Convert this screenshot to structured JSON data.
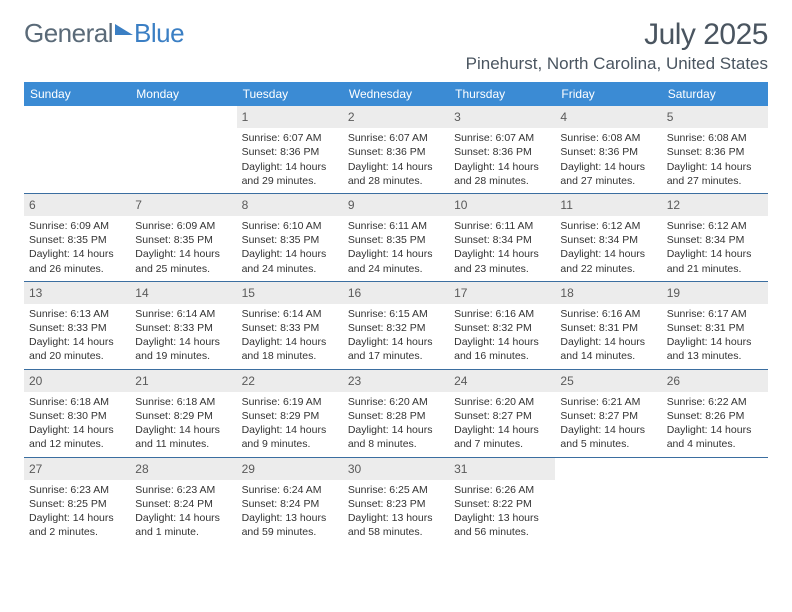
{
  "logo": {
    "text1": "General",
    "text2": "Blue"
  },
  "title": "July 2025",
  "location": "Pinehurst, North Carolina, United States",
  "colors": {
    "header_bg": "#3b8bd4",
    "header_text": "#ffffff",
    "daynum_bg": "#ececec",
    "week_border": "#3b6ea0",
    "title_color": "#4a5560",
    "logo_gray": "#5a6a78",
    "logo_blue": "#3b7fc4"
  },
  "day_names": [
    "Sunday",
    "Monday",
    "Tuesday",
    "Wednesday",
    "Thursday",
    "Friday",
    "Saturday"
  ],
  "first_weekday": 2,
  "days_in_month": 31,
  "days": {
    "1": {
      "sunrise": "6:07 AM",
      "sunset": "8:36 PM",
      "daylight": "14 hours and 29 minutes."
    },
    "2": {
      "sunrise": "6:07 AM",
      "sunset": "8:36 PM",
      "daylight": "14 hours and 28 minutes."
    },
    "3": {
      "sunrise": "6:07 AM",
      "sunset": "8:36 PM",
      "daylight": "14 hours and 28 minutes."
    },
    "4": {
      "sunrise": "6:08 AM",
      "sunset": "8:36 PM",
      "daylight": "14 hours and 27 minutes."
    },
    "5": {
      "sunrise": "6:08 AM",
      "sunset": "8:36 PM",
      "daylight": "14 hours and 27 minutes."
    },
    "6": {
      "sunrise": "6:09 AM",
      "sunset": "8:35 PM",
      "daylight": "14 hours and 26 minutes."
    },
    "7": {
      "sunrise": "6:09 AM",
      "sunset": "8:35 PM",
      "daylight": "14 hours and 25 minutes."
    },
    "8": {
      "sunrise": "6:10 AM",
      "sunset": "8:35 PM",
      "daylight": "14 hours and 24 minutes."
    },
    "9": {
      "sunrise": "6:11 AM",
      "sunset": "8:35 PM",
      "daylight": "14 hours and 24 minutes."
    },
    "10": {
      "sunrise": "6:11 AM",
      "sunset": "8:34 PM",
      "daylight": "14 hours and 23 minutes."
    },
    "11": {
      "sunrise": "6:12 AM",
      "sunset": "8:34 PM",
      "daylight": "14 hours and 22 minutes."
    },
    "12": {
      "sunrise": "6:12 AM",
      "sunset": "8:34 PM",
      "daylight": "14 hours and 21 minutes."
    },
    "13": {
      "sunrise": "6:13 AM",
      "sunset": "8:33 PM",
      "daylight": "14 hours and 20 minutes."
    },
    "14": {
      "sunrise": "6:14 AM",
      "sunset": "8:33 PM",
      "daylight": "14 hours and 19 minutes."
    },
    "15": {
      "sunrise": "6:14 AM",
      "sunset": "8:33 PM",
      "daylight": "14 hours and 18 minutes."
    },
    "16": {
      "sunrise": "6:15 AM",
      "sunset": "8:32 PM",
      "daylight": "14 hours and 17 minutes."
    },
    "17": {
      "sunrise": "6:16 AM",
      "sunset": "8:32 PM",
      "daylight": "14 hours and 16 minutes."
    },
    "18": {
      "sunrise": "6:16 AM",
      "sunset": "8:31 PM",
      "daylight": "14 hours and 14 minutes."
    },
    "19": {
      "sunrise": "6:17 AM",
      "sunset": "8:31 PM",
      "daylight": "14 hours and 13 minutes."
    },
    "20": {
      "sunrise": "6:18 AM",
      "sunset": "8:30 PM",
      "daylight": "14 hours and 12 minutes."
    },
    "21": {
      "sunrise": "6:18 AM",
      "sunset": "8:29 PM",
      "daylight": "14 hours and 11 minutes."
    },
    "22": {
      "sunrise": "6:19 AM",
      "sunset": "8:29 PM",
      "daylight": "14 hours and 9 minutes."
    },
    "23": {
      "sunrise": "6:20 AM",
      "sunset": "8:28 PM",
      "daylight": "14 hours and 8 minutes."
    },
    "24": {
      "sunrise": "6:20 AM",
      "sunset": "8:27 PM",
      "daylight": "14 hours and 7 minutes."
    },
    "25": {
      "sunrise": "6:21 AM",
      "sunset": "8:27 PM",
      "daylight": "14 hours and 5 minutes."
    },
    "26": {
      "sunrise": "6:22 AM",
      "sunset": "8:26 PM",
      "daylight": "14 hours and 4 minutes."
    },
    "27": {
      "sunrise": "6:23 AM",
      "sunset": "8:25 PM",
      "daylight": "14 hours and 2 minutes."
    },
    "28": {
      "sunrise": "6:23 AM",
      "sunset": "8:24 PM",
      "daylight": "14 hours and 1 minute."
    },
    "29": {
      "sunrise": "6:24 AM",
      "sunset": "8:24 PM",
      "daylight": "13 hours and 59 minutes."
    },
    "30": {
      "sunrise": "6:25 AM",
      "sunset": "8:23 PM",
      "daylight": "13 hours and 58 minutes."
    },
    "31": {
      "sunrise": "6:26 AM",
      "sunset": "8:22 PM",
      "daylight": "13 hours and 56 minutes."
    }
  },
  "labels": {
    "sunrise": "Sunrise: ",
    "sunset": "Sunset: ",
    "daylight": "Daylight: "
  }
}
